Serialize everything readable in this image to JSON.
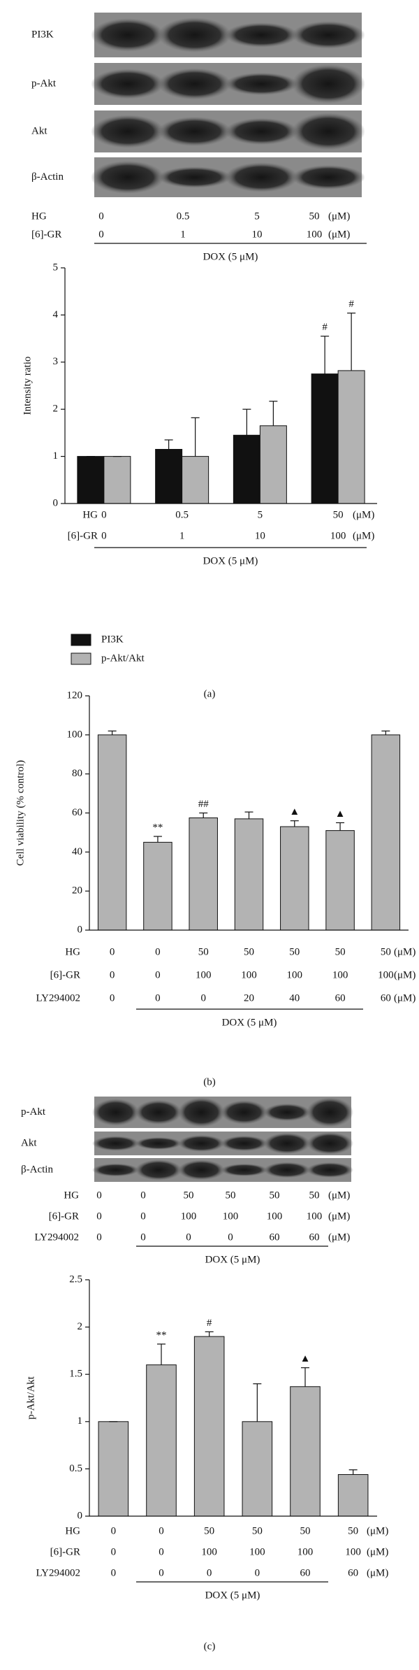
{
  "blot_a": {
    "rows": [
      "PI3K",
      "p-Akt",
      "Akt",
      "β-Actin"
    ],
    "conditions": [
      {
        "label": "HG",
        "values": [
          "0",
          "0.5",
          "5",
          "50"
        ]
      },
      {
        "label": "[6]-GR",
        "values": [
          "0",
          "1",
          "10",
          "100"
        ]
      }
    ],
    "unit": "(μM)",
    "group_label": "DOX (5 μM)"
  },
  "chart_data": [
    {
      "type": "bar",
      "y_label": "Intensity ratio",
      "ylim": [
        0,
        5
      ],
      "yticks": [
        0,
        1,
        2,
        3,
        4,
        5
      ],
      "legend": "below",
      "series": [
        {
          "name": "PI3K",
          "color": "#111111",
          "values": [
            1,
            1.15,
            1.45,
            2.75
          ],
          "errors": [
            0,
            0.2,
            0.55,
            0.8
          ],
          "markers": [
            null,
            null,
            null,
            "#"
          ]
        },
        {
          "name": "p-Akt/Akt",
          "color": "#b3b3b3",
          "values": [
            1,
            1,
            1.65,
            2.82
          ],
          "errors": [
            0,
            0.82,
            0.52,
            1.22
          ],
          "markers": [
            null,
            null,
            null,
            "#"
          ]
        }
      ],
      "conditions": [
        {
          "label": "HG",
          "values": [
            "0",
            "0.5",
            "5",
            "50"
          ]
        },
        {
          "label": "[6]-GR",
          "values": [
            "0",
            "1",
            "10",
            "100"
          ]
        }
      ],
      "unit": "(μM)",
      "group_label": "DOX (5 μM)"
    },
    {
      "type": "bar",
      "y_label": "Cell viability (% control)",
      "ylim": [
        0,
        120
      ],
      "yticks": [
        0,
        20,
        40,
        60,
        80,
        100,
        120
      ],
      "series": [
        {
          "color": "#b3b3b3",
          "values": [
            100,
            45,
            57.5,
            57,
            53,
            51,
            100
          ],
          "errors": [
            2,
            3,
            2.5,
            3.5,
            3,
            4,
            2
          ],
          "markers": [
            null,
            "**",
            "##",
            null,
            "▲",
            "▲",
            null
          ]
        }
      ],
      "conditions": [
        {
          "label": "HG",
          "values": [
            "0",
            "0",
            "50",
            "50",
            "50",
            "50",
            "50"
          ]
        },
        {
          "label": "[6]-GR",
          "values": [
            "0",
            "0",
            "100",
            "100",
            "100",
            "100",
            "100"
          ]
        },
        {
          "label": "LY294002",
          "values": [
            "0",
            "0",
            "0",
            "20",
            "40",
            "60",
            "60"
          ]
        }
      ],
      "unit": "(μM)",
      "group_label": "DOX (5 μM)"
    },
    {
      "type": "bar",
      "y_label": "p-Akt/Akt",
      "ylim": [
        0,
        2.5
      ],
      "yticks": [
        0,
        0.5,
        1,
        1.5,
        2,
        2.5
      ],
      "series": [
        {
          "color": "#b3b3b3",
          "values": [
            1,
            1.6,
            1.9,
            1.0,
            1.37,
            0.44
          ],
          "errors": [
            0,
            0.22,
            0.05,
            0.4,
            0.2,
            0.05
          ],
          "markers": [
            null,
            "**",
            "#",
            null,
            "▲",
            null
          ]
        }
      ],
      "conditions": [
        {
          "label": "HG",
          "values": [
            "0",
            "0",
            "50",
            "50",
            "50",
            "50"
          ]
        },
        {
          "label": "[6]-GR",
          "values": [
            "0",
            "0",
            "100",
            "100",
            "100",
            "100"
          ]
        },
        {
          "label": "LY294002",
          "values": [
            "0",
            "0",
            "0",
            "0",
            "60",
            "60"
          ]
        }
      ],
      "unit": "(μM)",
      "group_label": "DOX (5 μM)"
    }
  ],
  "blot_c": {
    "rows": [
      "p-Akt",
      "Akt",
      "β-Actin"
    ],
    "conditions": [
      {
        "label": "HG",
        "values": [
          "0",
          "0",
          "50",
          "50",
          "50",
          "50"
        ]
      },
      {
        "label": "[6]-GR",
        "values": [
          "0",
          "0",
          "100",
          "100",
          "100",
          "100"
        ]
      },
      {
        "label": "LY294002",
        "values": [
          "0",
          "0",
          "0",
          "0",
          "60",
          "60"
        ]
      }
    ],
    "unit": "(μM)",
    "group_label": "DOX (5 μM)"
  },
  "panel_labels": [
    "(a)",
    "(b)",
    "(c)"
  ]
}
